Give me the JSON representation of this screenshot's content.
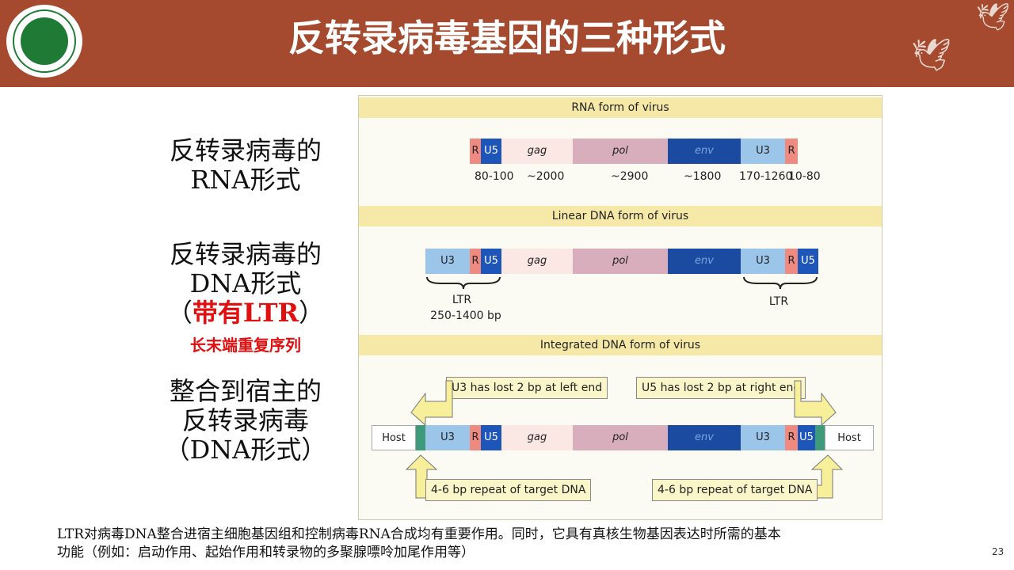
{
  "header": {
    "title": "反转录病毒基因的三种形式"
  },
  "labels": {
    "rna_form": [
      "反转录病毒的",
      "RNA形式"
    ],
    "dna_form": [
      "反转录病毒的",
      "DNA形式"
    ],
    "ltr_prefix": "（",
    "ltr_red": "带有LTR",
    "ltr_suffix": "）",
    "ltr_sub": "长末端重复序列",
    "integrated": [
      "整合到宿主的",
      "反转录病毒",
      "（DNA形式）"
    ]
  },
  "figure": {
    "band1": "RNA form of virus",
    "band2": "Linear DNA form of virus",
    "band3": "Integrated DNA form of virus",
    "seg_labels": {
      "R": "R",
      "U5": "U5",
      "U3": "U3",
      "gag": "gag",
      "pol": "pol",
      "env": "env",
      "host": "Host"
    },
    "rna_numbers": [
      "80-100",
      "~2000",
      "~2900",
      "~1800",
      "170-1260",
      "10-80"
    ],
    "ltr_left": [
      "LTR",
      "250-1400 bp"
    ],
    "ltr_right": "LTR",
    "callout_u3": "U3 has lost 2 bp at left end",
    "callout_u5": "U5 has lost 2 bp at right end",
    "callout_repeat_left": "4-6 bp repeat of  target DNA",
    "callout_repeat_right": "4-6 bp repeat of  target DNA"
  },
  "footer": {
    "line1": "LTR对病毒DNA整合进宿主细胞基因组和控制病毒RNA合成均有重要作用。同时，它具有真核生物基因表达时所需的基本",
    "line2": "功能（例如：启动作用、起始作用和转录物的多聚腺嘌呤加尾作用等）"
  },
  "page_number": "23",
  "colors": {
    "header": "#a54a2f",
    "R": "#ef8a80",
    "U5": "#1d55b8",
    "U3": "#9cc5ea",
    "gag": "#fbe7e4",
    "pol": "#d9aebc",
    "env": "#1a4ba0",
    "band": "#f6e9a8",
    "accent_red": "#e01010"
  }
}
